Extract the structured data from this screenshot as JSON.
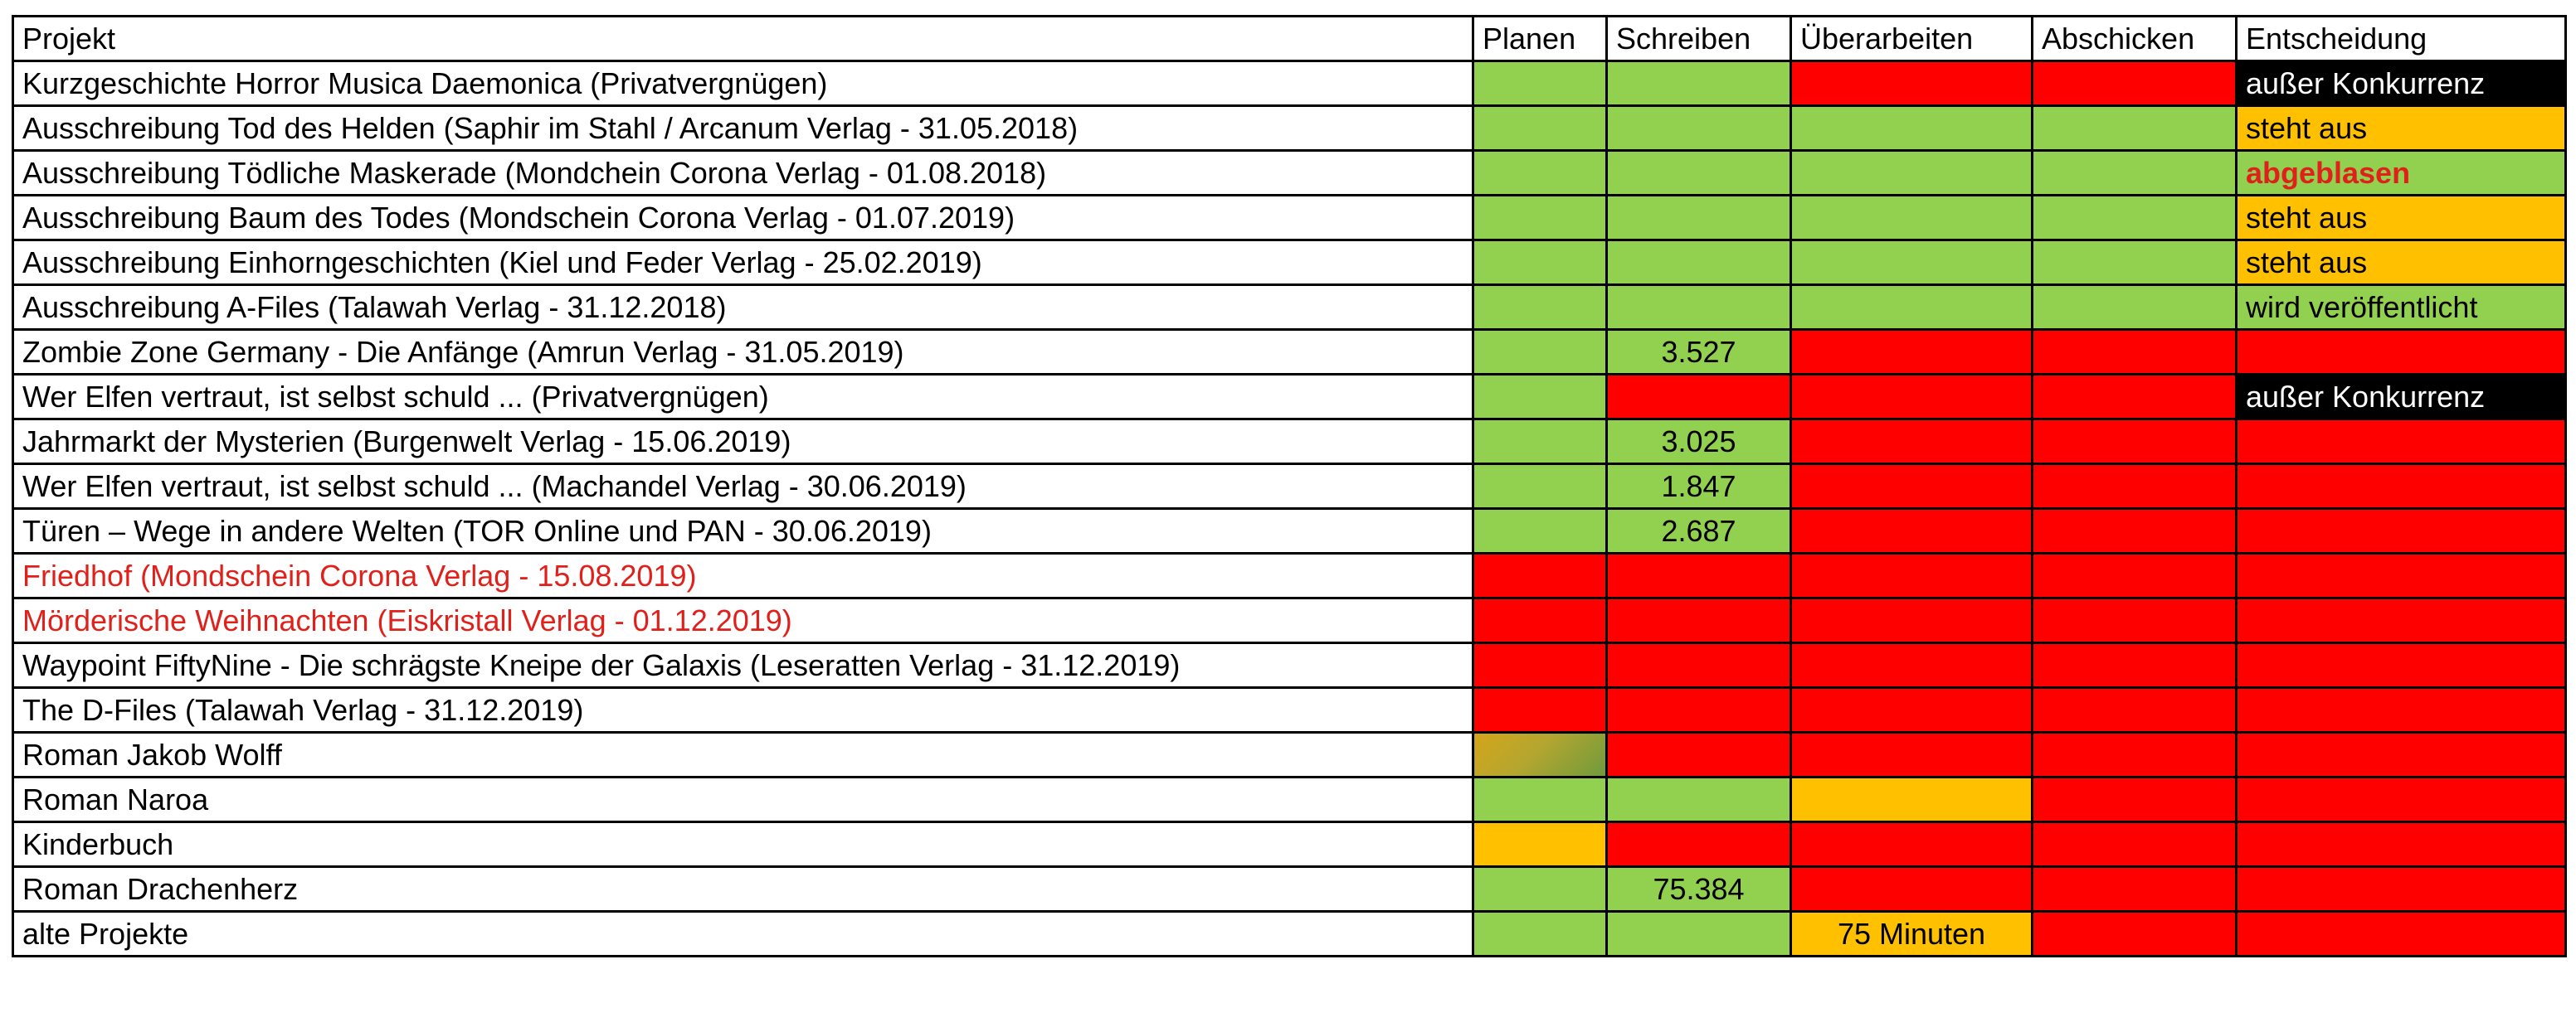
{
  "colors": {
    "green": "#92d050",
    "red": "#ff0000",
    "orange": "#ffc000",
    "black": "#000000",
    "white": "#ffffff",
    "text_red": "#e0201a"
  },
  "headers": [
    "Projekt",
    "Planen",
    "Schreiben",
    "Überarbeiten",
    "Abschicken",
    "Entscheidung"
  ],
  "rows": [
    {
      "project": "Kurzgeschichte Horror Musica Daemonica (Privatvergnügen)",
      "cells": [
        {
          "text": "",
          "color": "green"
        },
        {
          "text": "",
          "color": "green"
        },
        {
          "text": "",
          "color": "red"
        },
        {
          "text": "",
          "color": "red"
        },
        {
          "text": "außer Konkurrenz",
          "color": "black"
        }
      ]
    },
    {
      "project": "Ausschreibung Tod des Helden (Saphir im Stahl / Arcanum Verlag - 31.05.2018)",
      "cells": [
        {
          "text": "",
          "color": "green"
        },
        {
          "text": "",
          "color": "green"
        },
        {
          "text": "",
          "color": "green"
        },
        {
          "text": "",
          "color": "green"
        },
        {
          "text": "steht aus",
          "color": "orange"
        }
      ]
    },
    {
      "project": "Ausschreibung Tödliche Maskerade (Mondchein Corona Verlag - 01.08.2018)",
      "cells": [
        {
          "text": "",
          "color": "green"
        },
        {
          "text": "",
          "color": "green"
        },
        {
          "text": "",
          "color": "green"
        },
        {
          "text": "",
          "color": "green"
        },
        {
          "text": "abgeblasen",
          "color": "green",
          "text_style": "red-bold"
        }
      ]
    },
    {
      "project": "Ausschreibung Baum des Todes (Mondschein Corona Verlag - 01.07.2019)",
      "cells": [
        {
          "text": "",
          "color": "green"
        },
        {
          "text": "",
          "color": "green"
        },
        {
          "text": "",
          "color": "green"
        },
        {
          "text": "",
          "color": "green"
        },
        {
          "text": "steht aus",
          "color": "orange"
        }
      ]
    },
    {
      "project": "Ausschreibung Einhorngeschichten (Kiel und Feder Verlag - 25.02.2019)",
      "cells": [
        {
          "text": "",
          "color": "green"
        },
        {
          "text": "",
          "color": "green"
        },
        {
          "text": "",
          "color": "green"
        },
        {
          "text": "",
          "color": "green"
        },
        {
          "text": "steht aus",
          "color": "orange"
        }
      ]
    },
    {
      "project": "Ausschreibung A-Files (Talawah Verlag - 31.12.2018)",
      "cells": [
        {
          "text": "",
          "color": "green"
        },
        {
          "text": "",
          "color": "green"
        },
        {
          "text": "",
          "color": "green"
        },
        {
          "text": "",
          "color": "green"
        },
        {
          "text": "wird veröffentlicht",
          "color": "green"
        }
      ]
    },
    {
      "project": "Zombie Zone Germany - Die Anfänge (Amrun Verlag - 31.05.2019)",
      "cells": [
        {
          "text": "",
          "color": "green"
        },
        {
          "text": "3.527",
          "color": "green"
        },
        {
          "text": "",
          "color": "red"
        },
        {
          "text": "",
          "color": "red"
        },
        {
          "text": "",
          "color": "red"
        }
      ]
    },
    {
      "project": "Wer Elfen vertraut, ist selbst schuld ... (Privatvergnügen)",
      "cells": [
        {
          "text": "",
          "color": "green"
        },
        {
          "text": "",
          "color": "red"
        },
        {
          "text": "",
          "color": "red"
        },
        {
          "text": "",
          "color": "red"
        },
        {
          "text": "außer Konkurrenz",
          "color": "black"
        }
      ]
    },
    {
      "project": "Jahrmarkt der Mysterien (Burgenwelt Verlag - 15.06.2019)",
      "cells": [
        {
          "text": "",
          "color": "green"
        },
        {
          "text": "3.025",
          "color": "green"
        },
        {
          "text": "",
          "color": "red"
        },
        {
          "text": "",
          "color": "red"
        },
        {
          "text": "",
          "color": "red"
        }
      ]
    },
    {
      "project": "Wer Elfen vertraut, ist selbst schuld ... (Machandel Verlag - 30.06.2019)",
      "cells": [
        {
          "text": "",
          "color": "green"
        },
        {
          "text": "1.847",
          "color": "green"
        },
        {
          "text": "",
          "color": "red"
        },
        {
          "text": "",
          "color": "red"
        },
        {
          "text": "",
          "color": "red"
        }
      ]
    },
    {
      "project": "Türen – Wege in andere Welten (TOR Online und PAN - 30.06.2019)",
      "cells": [
        {
          "text": "",
          "color": "green"
        },
        {
          "text": "2.687",
          "color": "green"
        },
        {
          "text": "",
          "color": "red"
        },
        {
          "text": "",
          "color": "red"
        },
        {
          "text": "",
          "color": "red"
        }
      ]
    },
    {
      "project": "Friedhof (Mondschein Corona Verlag - 15.08.2019)",
      "project_style": "red",
      "cells": [
        {
          "text": "",
          "color": "red"
        },
        {
          "text": "",
          "color": "red"
        },
        {
          "text": "",
          "color": "red"
        },
        {
          "text": "",
          "color": "red"
        },
        {
          "text": "",
          "color": "red"
        }
      ]
    },
    {
      "project": "Mörderische Weihnachten (Eiskristall Verlag - 01.12.2019)",
      "project_style": "red",
      "cells": [
        {
          "text": "",
          "color": "red"
        },
        {
          "text": "",
          "color": "red"
        },
        {
          "text": "",
          "color": "red"
        },
        {
          "text": "",
          "color": "red"
        },
        {
          "text": "",
          "color": "red"
        }
      ]
    },
    {
      "project": "Waypoint FiftyNine - Die schrägste Kneipe der Galaxis (Leseratten Verlag - 31.12.2019)",
      "cells": [
        {
          "text": "",
          "color": "red"
        },
        {
          "text": "",
          "color": "red"
        },
        {
          "text": "",
          "color": "red"
        },
        {
          "text": "",
          "color": "red"
        },
        {
          "text": "",
          "color": "red"
        }
      ]
    },
    {
      "project": "The D-Files (Talawah Verlag - 31.12.2019)",
      "cells": [
        {
          "text": "",
          "color": "red"
        },
        {
          "text": "",
          "color": "red"
        },
        {
          "text": "",
          "color": "red"
        },
        {
          "text": "",
          "color": "red"
        },
        {
          "text": "",
          "color": "red"
        }
      ]
    },
    {
      "project": "Roman Jakob Wolff",
      "cells": [
        {
          "text": "",
          "color": "gradient"
        },
        {
          "text": "",
          "color": "red"
        },
        {
          "text": "",
          "color": "red"
        },
        {
          "text": "",
          "color": "red"
        },
        {
          "text": "",
          "color": "red"
        }
      ]
    },
    {
      "project": "Roman Naroa",
      "cells": [
        {
          "text": "",
          "color": "green"
        },
        {
          "text": "",
          "color": "green"
        },
        {
          "text": "",
          "color": "orange"
        },
        {
          "text": "",
          "color": "red"
        },
        {
          "text": "",
          "color": "red"
        }
      ]
    },
    {
      "project": "Kinderbuch",
      "cells": [
        {
          "text": "",
          "color": "orange"
        },
        {
          "text": "",
          "color": "red"
        },
        {
          "text": "",
          "color": "red"
        },
        {
          "text": "",
          "color": "red"
        },
        {
          "text": "",
          "color": "red"
        }
      ]
    },
    {
      "project": "Roman Drachenherz",
      "cells": [
        {
          "text": "",
          "color": "green"
        },
        {
          "text": "75.384",
          "color": "green"
        },
        {
          "text": "",
          "color": "red"
        },
        {
          "text": "",
          "color": "red"
        },
        {
          "text": "",
          "color": "red"
        }
      ]
    },
    {
      "project": "alte Projekte",
      "cells": [
        {
          "text": "",
          "color": "green"
        },
        {
          "text": "",
          "color": "green"
        },
        {
          "text": "75 Minuten",
          "color": "orange"
        },
        {
          "text": "",
          "color": "red"
        },
        {
          "text": "",
          "color": "red"
        }
      ]
    }
  ]
}
